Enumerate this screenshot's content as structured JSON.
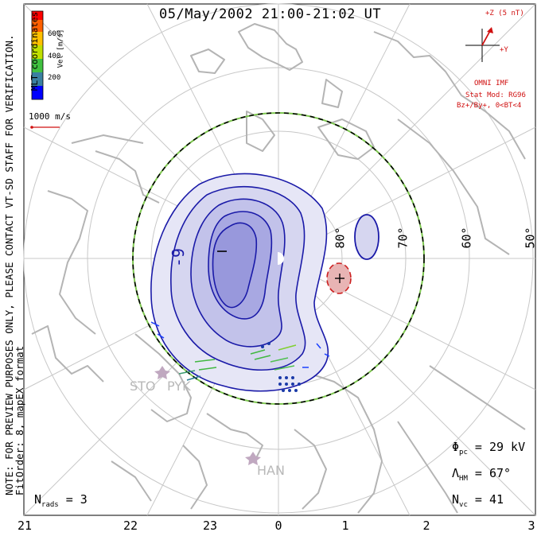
{
  "title": "05/May/2002 21:00-21:02 UT",
  "coordinate_label": "MLT coordinates",
  "notes": {
    "preview": "NOTE: FOR PREVIEW PURPOSES ONLY, PLEASE CONTACT VT-SD STAFF FOR VERIFICATION.",
    "fit": "FitOrder: 8, mapEX format"
  },
  "velocity_scale": {
    "axis_label": "Vel [m/s]",
    "ticks": [
      "600",
      "400",
      "200"
    ],
    "colors": [
      "#0000ff",
      "#1a40ff",
      "#40c040",
      "#c0e000",
      "#ffc000",
      "#ff6000",
      "#ff0000"
    ]
  },
  "reference_vector": {
    "label": "1000 m/s",
    "color": "#d01010"
  },
  "imf": {
    "z_label": "+Z (5 nT)",
    "y_label": "+Y",
    "source": "OMNI IMF",
    "model": "Stat Mod: RG96",
    "condition": "Bz+/By+, 0<BT<4",
    "color": "#d01010"
  },
  "latitude_labels": [
    "80°",
    "70°",
    "60°",
    "50°"
  ],
  "mlt_labels": [
    "21",
    "22",
    "23",
    "0",
    "1",
    "2",
    "3"
  ],
  "stations": [
    "STO",
    "PYK",
    "HAN"
  ],
  "contour_labels": {
    "negative_potential": "-9"
  },
  "stats": {
    "phi_pc_symbol": "Φ",
    "phi_pc_sub": "pc",
    "phi_pc_value": "= 29 kV",
    "lambda_hm_symbol": "Λ",
    "lambda_hm_sub": "HM",
    "lambda_hm_value": "= 67°",
    "n_vc_symbol": "N",
    "n_vc_sub": "vc",
    "n_vc_value": "= 41",
    "n_rads_symbol": "N",
    "n_rads_sub": "rads",
    "n_rads_value": "= 3"
  },
  "colors": {
    "contour_line": "#1a1aa8",
    "contour_fill": "#c9c9ee",
    "positive_cell": "#cc2020",
    "coastline": "#b4b4b4",
    "grid": "#c8c8c8",
    "boundary": "#7ec850"
  }
}
